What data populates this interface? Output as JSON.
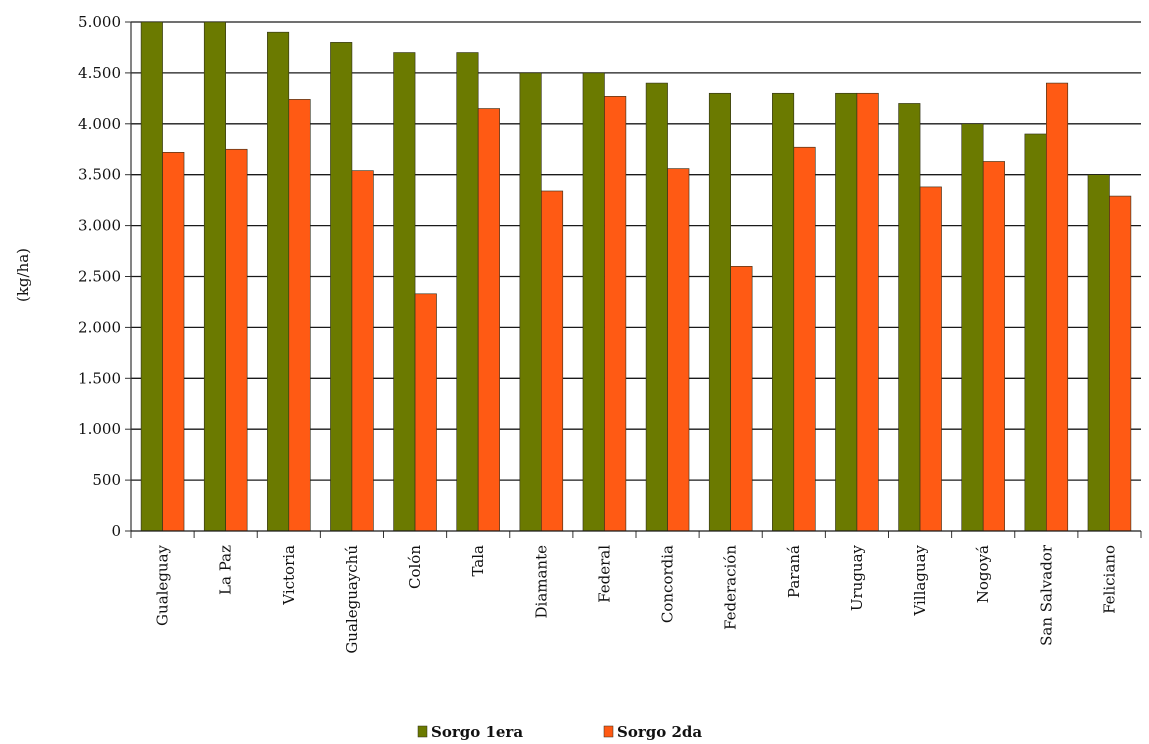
{
  "chart_data": {
    "type": "bar",
    "title": "",
    "xlabel": "",
    "ylabel": "(kg/ha)",
    "ylim": [
      0,
      5000
    ],
    "yticks": [
      {
        "value": 0,
        "label": "0"
      },
      {
        "value": 500,
        "label": "500"
      },
      {
        "value": 1000,
        "label": "1.000"
      },
      {
        "value": 1500,
        "label": "1.500"
      },
      {
        "value": 2000,
        "label": "2.000"
      },
      {
        "value": 2500,
        "label": "2.500"
      },
      {
        "value": 3000,
        "label": "3.000"
      },
      {
        "value": 3500,
        "label": "3.500"
      },
      {
        "value": 4000,
        "label": "4.000"
      },
      {
        "value": 4500,
        "label": "4.500"
      },
      {
        "value": 5000,
        "label": "5.000"
      }
    ],
    "grid": true,
    "legend_position": "bottom",
    "categories": [
      "Gualeguay",
      "La Paz",
      "Victoria",
      "Gualeguaychú",
      "Colón",
      "Tala",
      "Diamante",
      "Federal",
      "Concordia",
      "Federación",
      "Paraná",
      "Uruguay",
      "Villaguay",
      "Nogoyá",
      "San Salvador",
      "Feliciano"
    ],
    "series": [
      {
        "name": "Sorgo 1era",
        "color": "#6b7a00",
        "values": [
          5000,
          5000,
          4900,
          4800,
          4700,
          4700,
          4500,
          4500,
          4400,
          4300,
          4300,
          4300,
          4200,
          4000,
          3900,
          3500
        ]
      },
      {
        "name": "Sorgo 2da",
        "color": "#ff5a14",
        "values": [
          3720,
          3750,
          4240,
          3540,
          2330,
          4150,
          3340,
          4270,
          3560,
          2600,
          3770,
          4300,
          3380,
          3630,
          4400,
          3290
        ]
      }
    ]
  }
}
